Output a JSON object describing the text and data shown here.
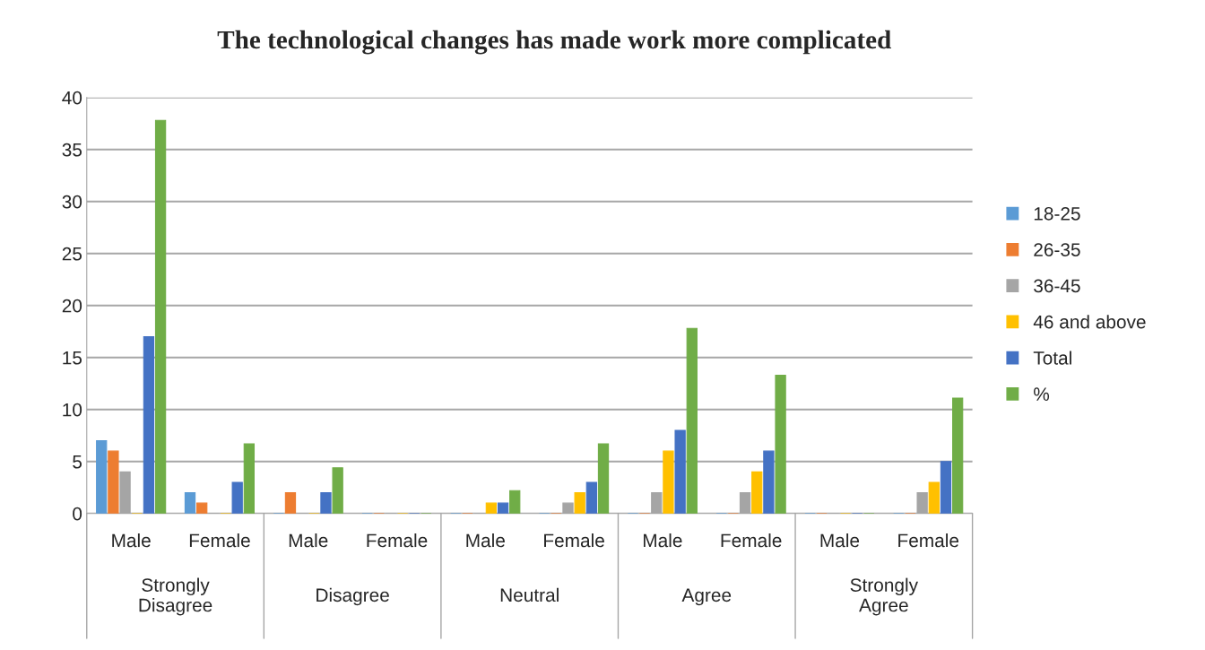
{
  "chart_data": {
    "type": "bar",
    "title": "The technological changes has made work more complicated",
    "categories": [
      "Male",
      "Female",
      "Male",
      "Female",
      "Male",
      "Female",
      "Male",
      "Female",
      "Male",
      "Female"
    ],
    "annotations": [
      "Strongly\nDisagree",
      "Disagree",
      "Neutral",
      "Agree",
      "Strongly\nAgree"
    ],
    "series": [
      {
        "name": "18-25",
        "color": "#5b9bd5",
        "values": [
          7,
          2,
          0,
          0,
          0,
          0,
          0,
          0,
          0,
          0
        ]
      },
      {
        "name": "26-35",
        "color": "#ed7d31",
        "values": [
          6,
          1,
          2,
          0,
          0,
          0,
          0,
          0,
          0,
          0
        ]
      },
      {
        "name": "36-45",
        "color": "#a5a5a5",
        "values": [
          4,
          0,
          0,
          0,
          0,
          1,
          2,
          2,
          0,
          2
        ]
      },
      {
        "name": "46 and above",
        "color": "#ffc000",
        "values": [
          0,
          0,
          0,
          0,
          1,
          2,
          6,
          4,
          0,
          3
        ]
      },
      {
        "name": "Total",
        "color": "#4472c4",
        "values": [
          17,
          3,
          2,
          0,
          1,
          3,
          8,
          6,
          0,
          5
        ]
      },
      {
        "name": "%",
        "color": "#70ad47",
        "values": [
          37.8,
          6.7,
          4.4,
          0,
          2.2,
          6.7,
          17.8,
          13.3,
          0,
          11.1
        ]
      }
    ],
    "ylim": [
      0,
      40
    ],
    "yticks": [
      0,
      5,
      10,
      15,
      20,
      25,
      30,
      35,
      40
    ],
    "grid": "y",
    "legend": "right"
  }
}
